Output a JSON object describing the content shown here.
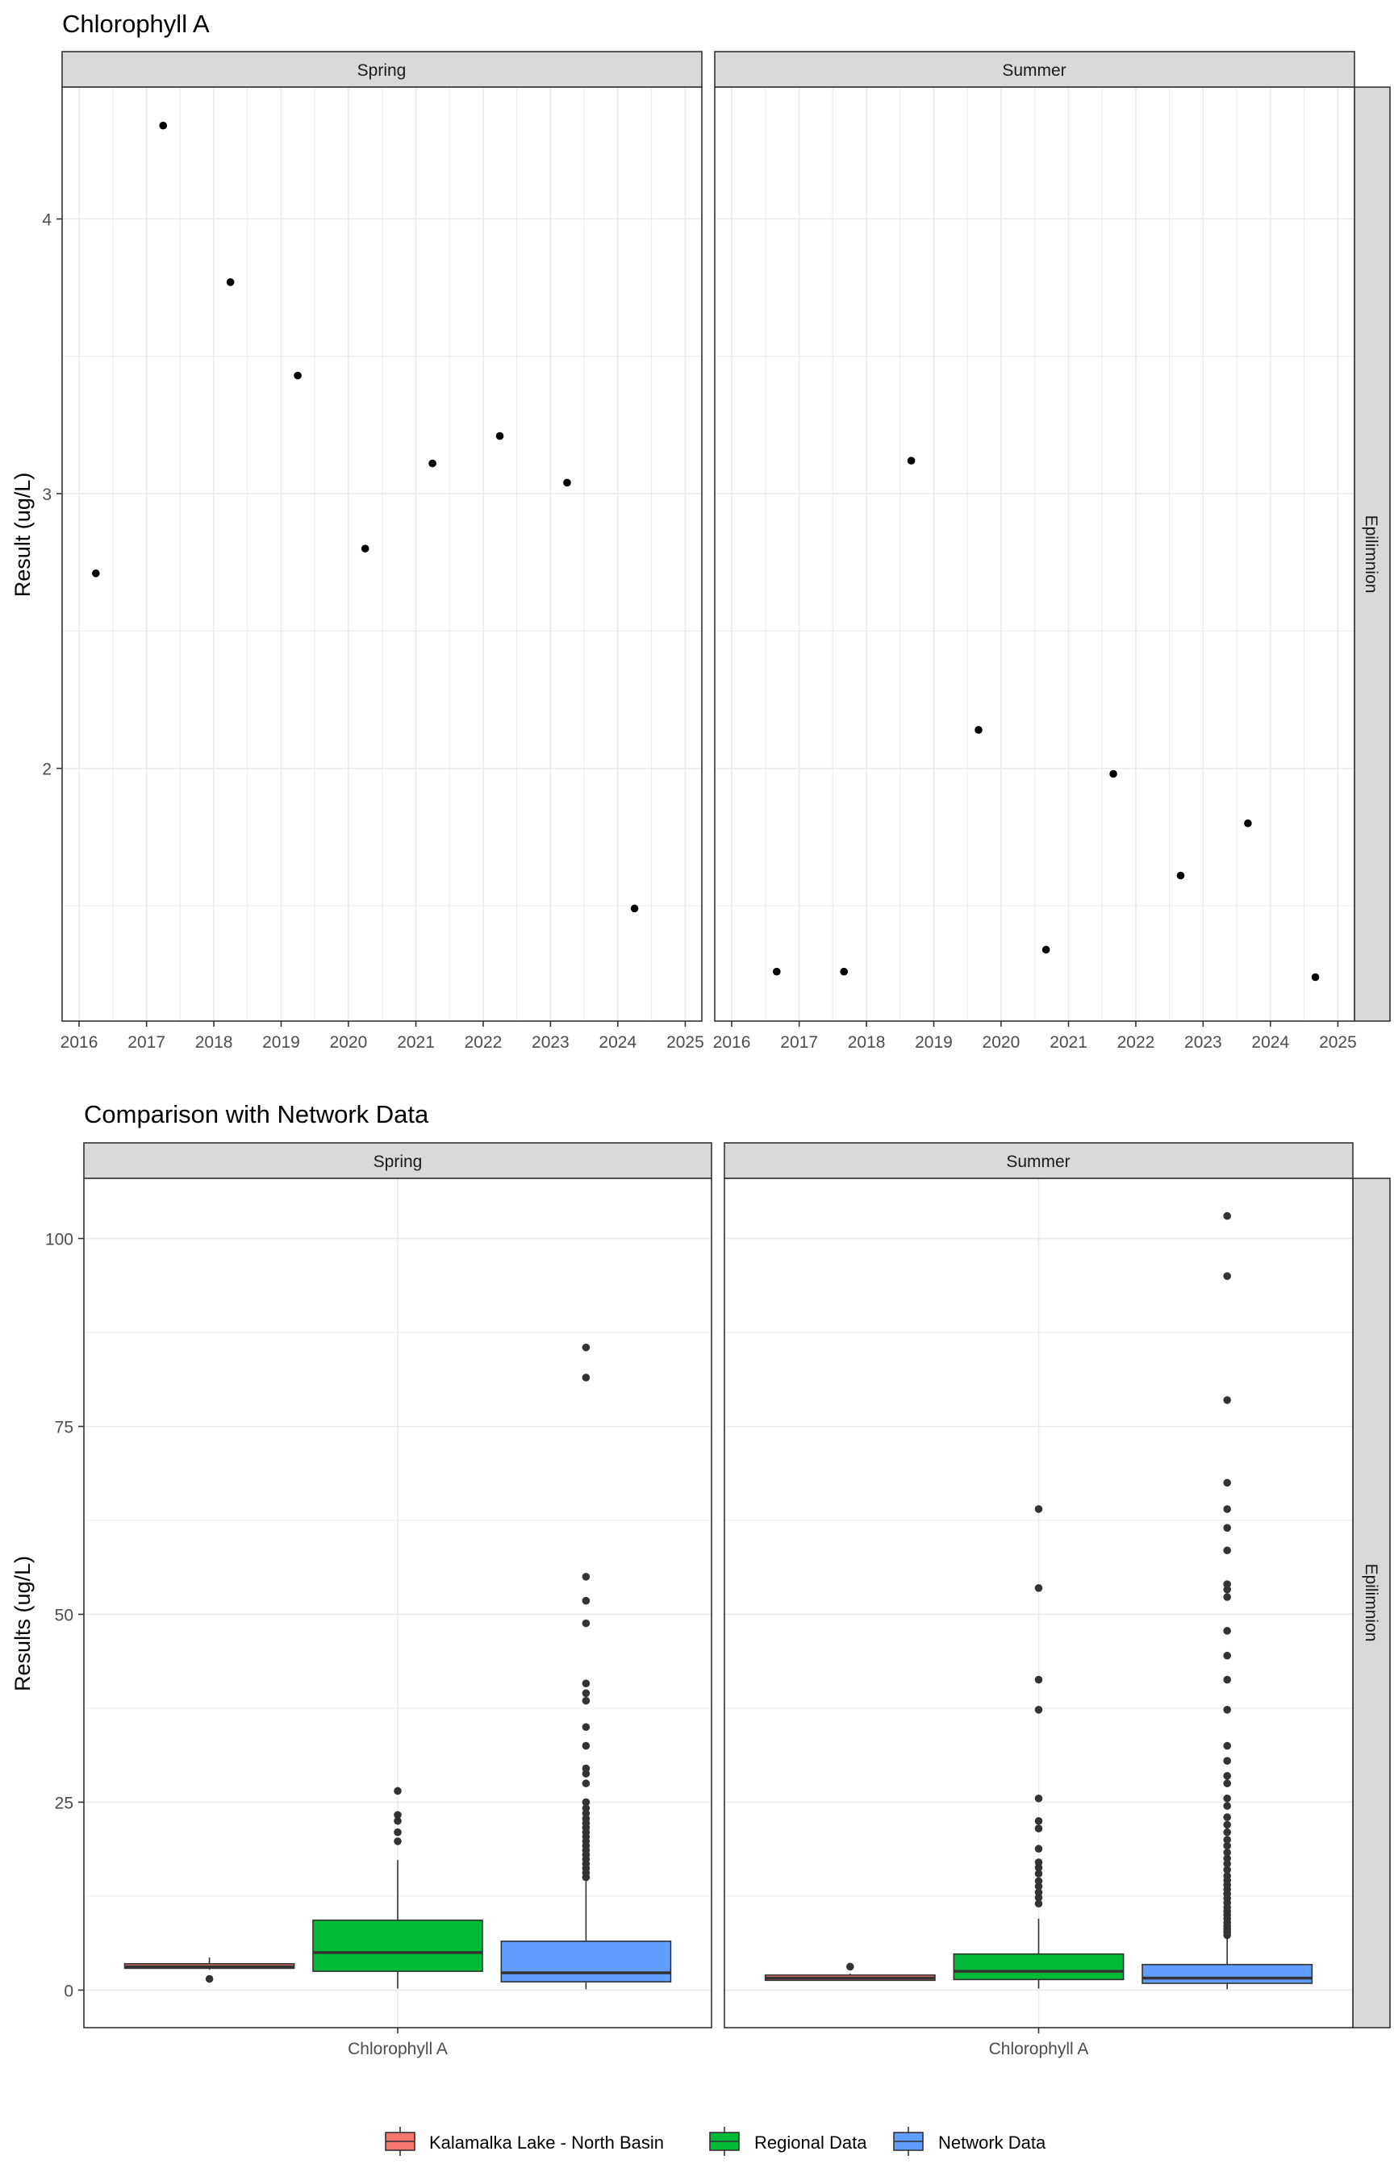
{
  "chart_data": [
    {
      "type": "scatter",
      "title": "Chlorophyll A",
      "ylabel": "Result (ug/L)",
      "xlabel": "",
      "x_ticks": [
        "2016",
        "2017",
        "2018",
        "2019",
        "2020",
        "2021",
        "2022",
        "2023",
        "2024",
        "2025"
      ],
      "y_ticks": [
        2,
        3,
        4
      ],
      "ylim": [
        1.08,
        4.48
      ],
      "xlim": [
        "2015-10-01",
        "2025-04-01"
      ],
      "row_strip": "Epilimnion",
      "grid": true,
      "panels": [
        {
          "strip": "Spring",
          "points": [
            {
              "x": "2016-04-01",
              "y": 2.71
            },
            {
              "x": "2017-04-01",
              "y": 4.34
            },
            {
              "x": "2018-04-01",
              "y": 3.77
            },
            {
              "x": "2019-04-01",
              "y": 3.43
            },
            {
              "x": "2020-04-01",
              "y": 2.8
            },
            {
              "x": "2021-04-01",
              "y": 3.11
            },
            {
              "x": "2022-04-01",
              "y": 3.21
            },
            {
              "x": "2023-04-01",
              "y": 3.04
            },
            {
              "x": "2024-04-01",
              "y": 1.49
            }
          ]
        },
        {
          "strip": "Summer",
          "points": [
            {
              "x": "2016-09-01",
              "y": 1.26
            },
            {
              "x": "2017-09-01",
              "y": 1.26
            },
            {
              "x": "2018-09-01",
              "y": 3.12
            },
            {
              "x": "2019-09-01",
              "y": 2.14
            },
            {
              "x": "2020-09-01",
              "y": 1.34
            },
            {
              "x": "2021-09-01",
              "y": 1.98
            },
            {
              "x": "2022-09-01",
              "y": 1.61
            },
            {
              "x": "2023-09-01",
              "y": 1.8
            },
            {
              "x": "2024-09-01",
              "y": 1.24
            }
          ]
        }
      ]
    },
    {
      "type": "box",
      "title": "Comparison with Network Data",
      "ylabel": "Results (ug/L)",
      "category": "Chlorophyll A",
      "y_ticks": [
        0,
        25,
        50,
        75,
        100
      ],
      "ylim": [
        -5,
        108
      ],
      "row_strip": "Epilimnion",
      "grid": true,
      "legend_position": "bottom",
      "legend": [
        {
          "name": "Kalamalka Lake - North Basin",
          "color": "#F8766D"
        },
        {
          "name": "Regional Data",
          "color": "#00BA38"
        },
        {
          "name": "Network Data",
          "color": "#619CFF"
        }
      ],
      "panels": [
        {
          "strip": "Spring",
          "boxes": [
            {
              "group": "Kalamalka Lake - North Basin",
              "min": 2.7,
              "q1": 2.9,
              "median": 3.1,
              "q3": 3.5,
              "max": 4.34,
              "outliers": [
                1.49
              ]
            },
            {
              "group": "Regional Data",
              "min": 0.2,
              "q1": 2.5,
              "median": 5.0,
              "q3": 9.3,
              "max": 17.3,
              "outliers": [
                19.8,
                21.0,
                22.5,
                23.3,
                26.5
              ]
            },
            {
              "group": "Network Data",
              "min": 0.1,
              "q1": 1.1,
              "median": 2.3,
              "q3": 6.5,
              "max": 14.5,
              "outliers": [
                15.0,
                15.6,
                16.2,
                16.8,
                17.4,
                18.0,
                18.6,
                19.2,
                19.8,
                20.4,
                21.0,
                21.6,
                22.2,
                22.8,
                23.5,
                24.2,
                25.0,
                27.5,
                28.8,
                29.5,
                32.5,
                35.0,
                38.5,
                39.5,
                40.8,
                48.8,
                51.8,
                55.0,
                81.5,
                85.5
              ]
            }
          ]
        },
        {
          "strip": "Summer",
          "boxes": [
            {
              "group": "Kalamalka Lake - North Basin",
              "min": 1.24,
              "q1": 1.3,
              "median": 1.6,
              "q3": 2.0,
              "max": 2.2,
              "outliers": [
                3.12
              ]
            },
            {
              "group": "Regional Data",
              "min": 0.2,
              "q1": 1.4,
              "median": 2.5,
              "q3": 4.8,
              "max": 9.5,
              "outliers": [
                11.5,
                12.3,
                13.0,
                13.8,
                14.5,
                15.5,
                16.3,
                17.0,
                18.8,
                21.5,
                22.5,
                25.5,
                37.3,
                41.3,
                53.5,
                64.0
              ]
            },
            {
              "group": "Network Data",
              "min": 0.1,
              "q1": 0.9,
              "median": 1.6,
              "q3": 3.4,
              "max": 7.0,
              "outliers": [
                7.3,
                7.7,
                8.1,
                8.5,
                9.0,
                9.5,
                10.0,
                10.5,
                11.0,
                11.6,
                12.2,
                12.8,
                13.4,
                14.0,
                14.6,
                15.2,
                16.0,
                16.8,
                17.5,
                18.3,
                19.2,
                20.0,
                21.0,
                22.0,
                23.0,
                24.5,
                25.5,
                27.5,
                28.5,
                30.5,
                32.5,
                37.3,
                41.3,
                44.5,
                47.8,
                52.3,
                53.3,
                54.0,
                58.5,
                61.5,
                64.0,
                67.5,
                78.5,
                95.0,
                103.0
              ]
            }
          ]
        }
      ]
    }
  ]
}
